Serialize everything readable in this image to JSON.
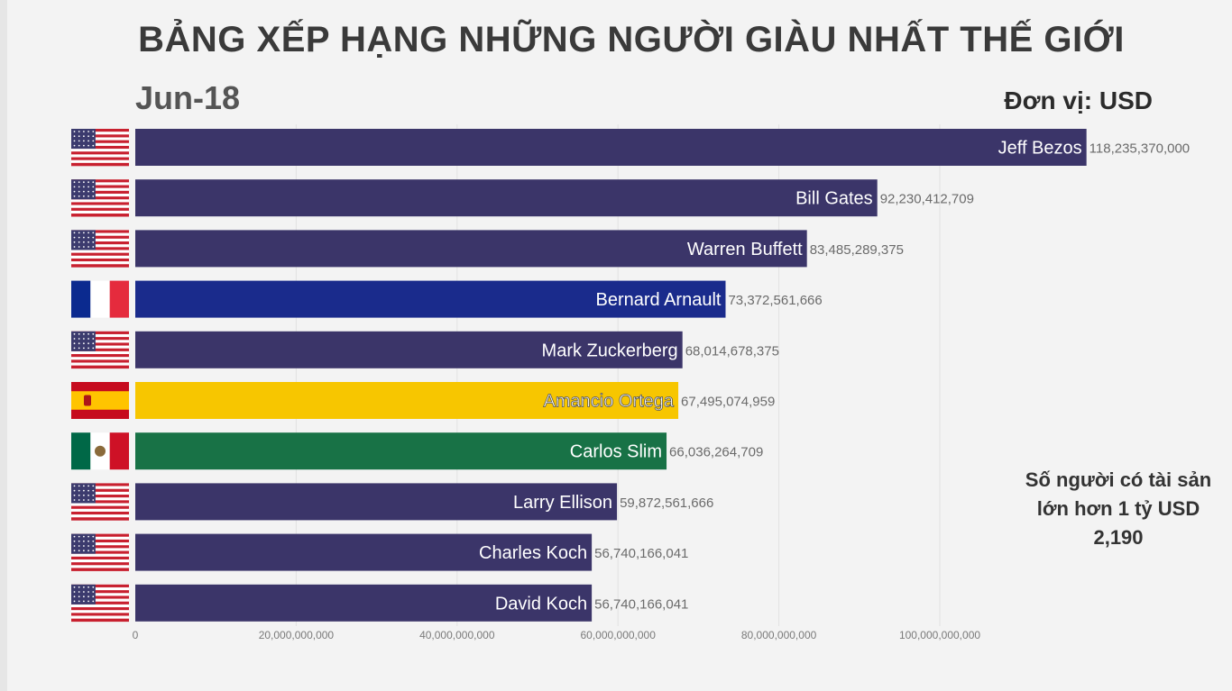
{
  "title": "BẢNG XẾP HẠNG NHỮNG NGƯỜI GIÀU NHẤT THẾ GIỚI",
  "date_label": "Jun-18",
  "unit_label": "Đơn vị: USD",
  "note": {
    "line1": "Số người có tài sản",
    "line2": "lớn hơn 1 tỷ USD",
    "value": "2,190"
  },
  "chart_data": {
    "type": "bar",
    "orientation": "horizontal",
    "categories": [
      "Jeff Bezos",
      "Bill Gates",
      "Warren Buffett",
      "Bernard Arnault",
      "Mark Zuckerberg",
      "Amancio Ortega",
      "Carlos Slim",
      "Larry Ellison",
      "Charles Koch",
      "David Koch"
    ],
    "values": [
      118235370000,
      92230412709,
      83485289375,
      73372561666,
      68014678375,
      67495074959,
      66036264709,
      59872561666,
      56740166041,
      56740166041
    ],
    "value_labels": [
      "118,235,370,000",
      "92,230,412,709",
      "83,485,289,375",
      "73,372,561,666",
      "68,014,678,375",
      "67,495,074,959",
      "66,036,264,709",
      "59,872,561,666",
      "56,740,166,041",
      "56,740,166,041"
    ],
    "countries": [
      "us",
      "us",
      "us",
      "fr",
      "us",
      "es",
      "mx",
      "us",
      "us",
      "us"
    ],
    "bar_colors": [
      "#3b3569",
      "#3b3569",
      "#3b3569",
      "#1a2b8c",
      "#3b3569",
      "#f7c600",
      "#187246",
      "#3b3569",
      "#3b3569",
      "#3b3569"
    ],
    "x_ticks": [
      0,
      20000000000,
      40000000000,
      60000000000,
      80000000000,
      100000000000
    ],
    "x_tick_labels": [
      "0",
      "20,000,000,000",
      "40,000,000,000",
      "60,000,000,000",
      "80,000,000,000",
      "100,000,000,000"
    ],
    "xlim": [
      0,
      120000000000
    ],
    "grid": true
  }
}
